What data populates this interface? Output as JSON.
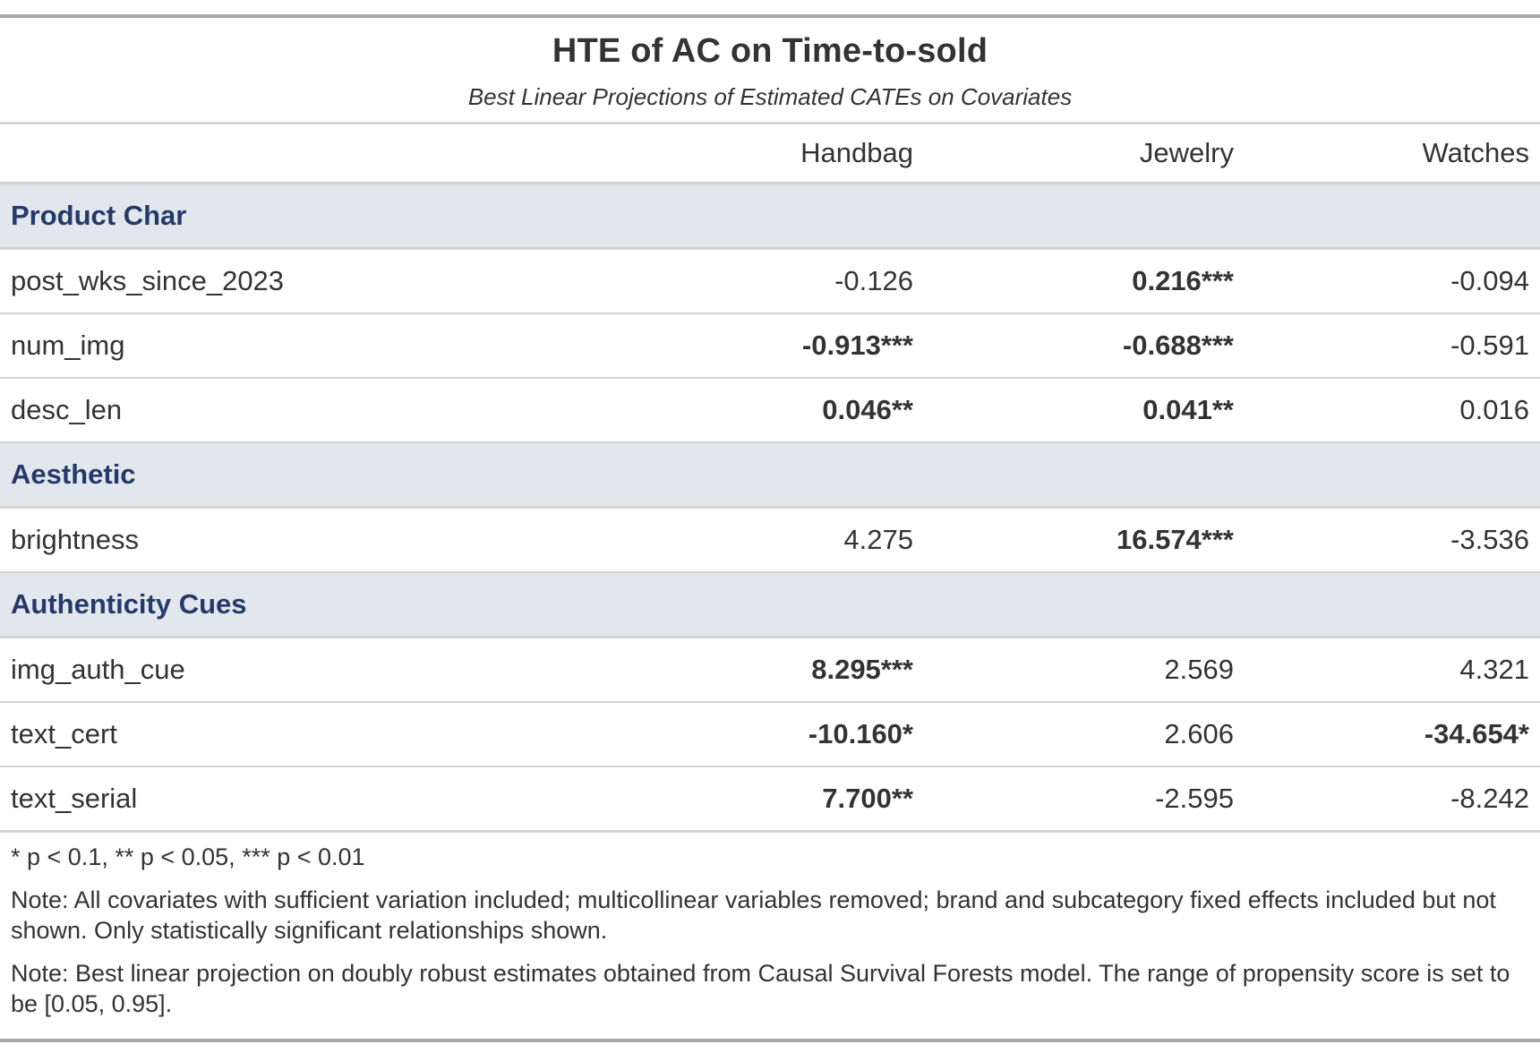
{
  "title": "HTE of AC on Time-to-sold",
  "subtitle": "Best Linear Projections of Estimated CATEs on Covariates",
  "columns": {
    "stub": "",
    "col1": "Handbag",
    "col2": "Jewelry",
    "col3": "Watches"
  },
  "groups": {
    "product_char": {
      "label": "Product Char",
      "rows": [
        {
          "name": "post_wks_since_2023",
          "v1": "-0.126",
          "v2": "0.216***",
          "v3": "-0.094"
        },
        {
          "name": "num_img",
          "v1": "-0.913***",
          "v2": "-0.688***",
          "v3": "-0.591"
        },
        {
          "name": "desc_len",
          "v1": "0.046**",
          "v2": "0.041**",
          "v3": "0.016"
        }
      ]
    },
    "aesthetic": {
      "label": "Aesthetic",
      "rows": [
        {
          "name": "brightness",
          "v1": "4.275",
          "v2": "16.574***",
          "v3": "-3.536"
        }
      ]
    },
    "authenticity": {
      "label": "Authenticity Cues",
      "rows": [
        {
          "name": "img_auth_cue",
          "v1": "8.295***",
          "v2": "2.569",
          "v3": "4.321"
        },
        {
          "name": "text_cert",
          "v1": "-10.160*",
          "v2": "2.606",
          "v3": "-34.654*"
        },
        {
          "name": "text_serial",
          "v1": "7.700**",
          "v2": "-2.595",
          "v3": "-8.242"
        }
      ]
    }
  },
  "footnotes": {
    "significance": "* p < 0.1, ** p < 0.05, *** p < 0.01",
    "note1": "Note: All covariates with sufficient variation included; multicollinear variables removed; brand and subcategory fixed effects included but not shown. Only statistically significant relationships shown.",
    "note2": "Note: Best linear projection on doubly robust estimates obtained from Causal Survival Forests model. The range of propensity score is set to be [0.05, 0.95]."
  },
  "colors": {
    "group_background": "#e1e7ec",
    "group_text": "#253a6a",
    "rule": "#a8a8a8",
    "divider": "#d3d3d3"
  }
}
